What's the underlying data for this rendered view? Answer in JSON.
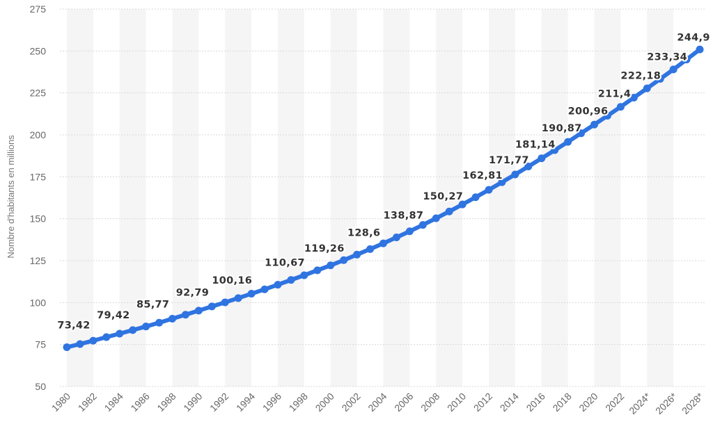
{
  "chart_data": {
    "type": "line",
    "ylabel": "Nombre d'habitants en millions",
    "xlabel": "",
    "ylim": [
      50,
      275
    ],
    "yticks": [
      50,
      75,
      100,
      125,
      150,
      175,
      200,
      225,
      250,
      275
    ],
    "grid": true,
    "legend": "none",
    "colors": {
      "line": "#2f74e0",
      "band": "#f5f5f5",
      "grid": "#d8d8d8"
    },
    "x": [
      "1980",
      "1981",
      "1982",
      "1983",
      "1984",
      "1985",
      "1986",
      "1987",
      "1988",
      "1989",
      "1990",
      "1991",
      "1992",
      "1993",
      "1994",
      "1995",
      "1996",
      "1997",
      "1998",
      "1999",
      "2000",
      "2001",
      "2002",
      "2003",
      "2004",
      "2005",
      "2006",
      "2007",
      "2008",
      "2009",
      "2010",
      "2011",
      "2012",
      "2013",
      "2014",
      "2015",
      "2016",
      "2017",
      "2018",
      "2019",
      "2020",
      "2021",
      "2022",
      "2023",
      "2024*",
      "2025*",
      "2026*",
      "2027*",
      "2028*"
    ],
    "xtick_labels": [
      "1980",
      "1982",
      "1984",
      "1986",
      "1988",
      "1990",
      "1992",
      "1994",
      "1996",
      "1998",
      "2000",
      "2002",
      "2004",
      "2006",
      "2008",
      "2010",
      "2012",
      "2014",
      "2016",
      "2018",
      "2020",
      "2022",
      "2024*",
      "2026*",
      "2028*"
    ],
    "series": [
      {
        "values": [
          73.42,
          75.3,
          77.3,
          79.42,
          81.5,
          83.6,
          85.77,
          88.0,
          90.4,
          92.79,
          95.2,
          97.7,
          100.16,
          102.7,
          105.3,
          107.9,
          110.67,
          113.5,
          116.3,
          119.26,
          122.2,
          125.3,
          128.6,
          131.9,
          135.3,
          138.87,
          142.5,
          146.3,
          150.27,
          154.3,
          158.5,
          162.81,
          167.2,
          171.77,
          176.4,
          181.14,
          186.0,
          190.87,
          195.8,
          200.96,
          206.1,
          211.4,
          216.7,
          222.18,
          227.7,
          233.34,
          239.0,
          244.9,
          250.9
        ],
        "labels": [
          {
            "index": 0,
            "text": "73,42"
          },
          {
            "index": 3,
            "text": "79,42"
          },
          {
            "index": 6,
            "text": "85,77"
          },
          {
            "index": 9,
            "text": "92,79"
          },
          {
            "index": 12,
            "text": "100,16"
          },
          {
            "index": 16,
            "text": "110,67"
          },
          {
            "index": 19,
            "text": "119,26"
          },
          {
            "index": 22,
            "text": "128,6"
          },
          {
            "index": 25,
            "text": "138,87"
          },
          {
            "index": 28,
            "text": "150,27"
          },
          {
            "index": 31,
            "text": "162,81"
          },
          {
            "index": 33,
            "text": "171,77"
          },
          {
            "index": 35,
            "text": "181,14"
          },
          {
            "index": 37,
            "text": "190,87"
          },
          {
            "index": 39,
            "text": "200,96"
          },
          {
            "index": 41,
            "text": "211,4"
          },
          {
            "index": 43,
            "text": "222,18"
          },
          {
            "index": 45,
            "text": "233,34"
          },
          {
            "index": 47,
            "text": "244,9"
          }
        ]
      }
    ]
  }
}
